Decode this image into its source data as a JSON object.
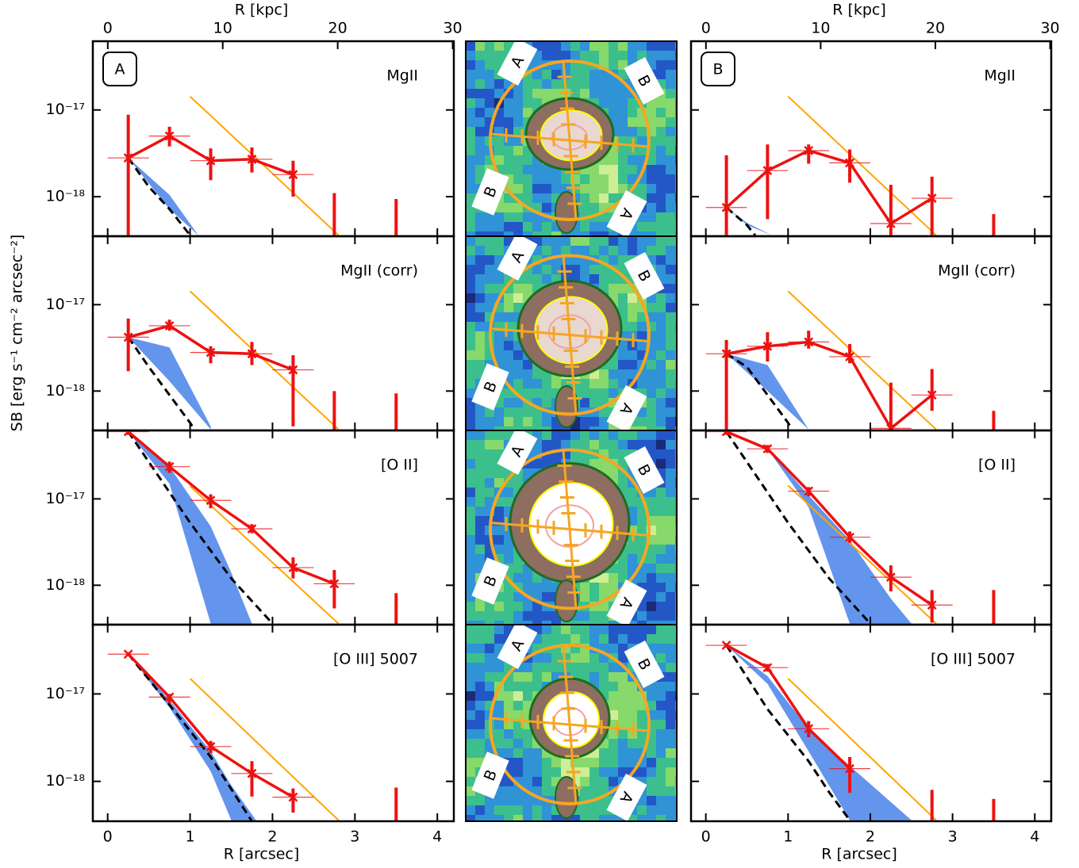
{
  "chart_data": [
    {
      "type": "line",
      "title": "MgII",
      "panel_label": "A",
      "x2label": "R [kpc]",
      "x2lim": [
        -1.3,
        30.1
      ],
      "x2ticks": [
        0,
        10,
        20,
        30
      ],
      "ylabel": "SB [erg s⁻¹ cm⁻² arcsec⁻²]",
      "xlim": [
        -0.18,
        4.2
      ],
      "xticks": [
        0,
        1,
        2,
        3,
        4
      ],
      "ylim": [
        3.5e-19,
        6.2e-17
      ],
      "log_y": true,
      "yticks": [
        {
          "value": 1e-17,
          "label": "10⁻¹⁷"
        },
        {
          "value": 1e-18,
          "label": "10⁻¹⁸"
        }
      ],
      "points": {
        "color": "#ee1111",
        "xerr": 0.25,
        "x": [
          0.25,
          0.75,
          1.25,
          1.75,
          2.25
        ],
        "values": [
          2.8e-18,
          5e-18,
          2.6e-18,
          2.7e-18,
          1.8e-18
        ],
        "ylow": [
          3.6e-19,
          3.8e-18,
          1.55e-18,
          1.9e-18,
          1e-18
        ],
        "yhigh": [
          8.8e-18,
          6.4e-18,
          3.6e-18,
          3.7e-18,
          2.6e-18
        ]
      },
      "limits": {
        "color": "#ee1111",
        "x": [
          2.75,
          3.5
        ],
        "y": [
          1.1e-18,
          9.4e-19
        ]
      },
      "model": {
        "color": "#ffa500",
        "x": [
          1.0,
          2.8
        ],
        "y": [
          1.43e-17,
          3.6e-19
        ]
      },
      "psf": {
        "color": "#000000",
        "x": [
          0.25,
          0.5,
          0.75,
          1.0
        ],
        "y": [
          2.8e-18,
          1.3e-18,
          7.2e-19,
          3.6e-19
        ]
      },
      "band": {
        "color": "#6495ed",
        "x": [
          0.25,
          0.75,
          1.1
        ],
        "high": [
          2.8e-18,
          1.05e-18,
          3.6e-19
        ],
        "low": [
          2.8e-18,
          7.2e-19,
          3.6e-19
        ]
      }
    },
    {
      "type": "line",
      "title": "MgII (corr)",
      "xlim": [
        -0.18,
        4.2
      ],
      "xticks": [
        0,
        1,
        2,
        3,
        4
      ],
      "ylim": [
        3.5e-19,
        6.2e-17
      ],
      "log_y": true,
      "yticks": [
        {
          "value": 1e-17,
          "label": "10⁻¹⁷"
        },
        {
          "value": 1e-18,
          "label": "10⁻¹⁸"
        }
      ],
      "points": {
        "color": "#ee1111",
        "xerr": 0.25,
        "x": [
          0.25,
          0.75,
          1.25,
          1.75,
          2.25
        ],
        "values": [
          4.2e-18,
          5.7e-18,
          2.8e-18,
          2.7e-18,
          1.76e-18
        ],
        "ylow": [
          1.7e-18,
          5e-18,
          2.1e-18,
          2e-18,
          3.9e-19
        ],
        "yhigh": [
          6.9e-18,
          6.7e-18,
          3.3e-18,
          3.7e-18,
          2.6e-18
        ]
      },
      "limits": {
        "color": "#ee1111",
        "x": [
          2.75,
          3.5
        ],
        "y": [
          1e-18,
          9.4e-19
        ]
      },
      "model": {
        "color": "#ffa500",
        "x": [
          1.0,
          2.8
        ],
        "y": [
          1.43e-17,
          3.6e-19
        ]
      },
      "psf": {
        "color": "#000000",
        "x": [
          0.25,
          0.5,
          0.75,
          1.0,
          1.05
        ],
        "y": [
          4.2e-18,
          1.9e-18,
          9e-19,
          4.3e-19,
          3.6e-19
        ]
      },
      "band": {
        "color": "#6495ed",
        "x": [
          0.25,
          0.75,
          1.25
        ],
        "high": [
          4.2e-18,
          3.2e-18,
          3.9e-19
        ],
        "low": [
          4.2e-18,
          1.3e-18,
          3.6e-19
        ]
      }
    },
    {
      "type": "line",
      "title": "[O II]",
      "xlim": [
        -0.18,
        4.2
      ],
      "xticks": [
        0,
        1,
        2,
        3,
        4
      ],
      "ylim": [
        3.5e-19,
        6.2e-17
      ],
      "log_y": true,
      "yticks": [
        {
          "value": 1e-17,
          "label": "10⁻¹⁷"
        },
        {
          "value": 1e-18,
          "label": "10⁻¹⁸"
        }
      ],
      "points": {
        "color": "#ee1111",
        "xerr": 0.25,
        "x": [
          0.25,
          0.75,
          1.25,
          1.75,
          2.25,
          2.75
        ],
        "values": [
          6e-17,
          2.36e-17,
          9.6e-18,
          4.5e-18,
          1.6e-18,
          1.04e-18
        ],
        "ylow": [
          5.5e-17,
          2e-17,
          7.8e-18,
          4e-18,
          1.2e-18,
          5.4e-19
        ],
        "yhigh": [
          6.5e-17,
          2.7e-17,
          1.13e-17,
          5.1e-18,
          2.1e-18,
          1.5e-18
        ]
      },
      "limits": {
        "color": "#ee1111",
        "x": [
          3.5
        ],
        "y": [
          8.1e-19
        ]
      },
      "model": {
        "color": "#ffa500",
        "x": [
          1.0,
          2.8
        ],
        "y": [
          1.4e-17,
          3.6e-19
        ]
      },
      "psf": {
        "color": "#000000",
        "x": [
          0.25,
          1.0,
          1.5,
          2.0
        ],
        "y": [
          6e-17,
          5.3e-18,
          1.2e-18,
          3.6e-19
        ]
      },
      "band": {
        "color": "#6495ed",
        "x": [
          0.25,
          0.75,
          1.25,
          1.5,
          1.75
        ],
        "high": [
          6e-17,
          2.36e-17,
          4.8e-18,
          1.4e-18,
          3.6e-19
        ],
        "low": [
          6e-17,
          1.5e-17,
          3.6e-19,
          3.6e-19,
          3.6e-19
        ]
      }
    },
    {
      "type": "line",
      "title": "[O III] 5007",
      "xlabel": "R [arcsec]",
      "xlim": [
        -0.18,
        4.2
      ],
      "xticks": [
        0,
        1,
        2,
        3,
        4
      ],
      "ylim": [
        3.5e-19,
        6.2e-17
      ],
      "log_y": true,
      "yticks": [
        {
          "value": 1e-17,
          "label": "10⁻¹⁷"
        },
        {
          "value": 1e-18,
          "label": "10⁻¹⁸"
        }
      ],
      "points": {
        "color": "#ee1111",
        "xerr": 0.25,
        "x": [
          0.25,
          0.75,
          1.25,
          1.75,
          2.25
        ],
        "values": [
          2.85e-17,
          9.2e-18,
          2.5e-18,
          1.23e-18,
          6.6e-19
        ],
        "ylow": [
          2.7e-17,
          7.9e-18,
          2.1e-18,
          6.7e-19,
          4.4e-19
        ],
        "yhigh": [
          3e-17,
          1e-17,
          2.9e-18,
          1.7e-18,
          8.3e-19
        ]
      },
      "limits": {
        "color": "#ee1111",
        "x": [
          3.5
        ],
        "y": [
          8.5e-19
        ]
      },
      "model": {
        "color": "#ffa500",
        "x": [
          1.0,
          2.8
        ],
        "y": [
          1.5e-17,
          3.6e-19
        ]
      },
      "psf": {
        "color": "#000000",
        "x": [
          0.25,
          0.75,
          1.25,
          1.75
        ],
        "y": [
          2.85e-17,
          7.5e-18,
          1.9e-18,
          3.5e-19
        ]
      },
      "band": {
        "color": "#6495ed",
        "x": [
          0.25,
          0.75,
          1.25,
          1.5,
          1.8
        ],
        "high": [
          2.85e-17,
          8.5e-18,
          2.2e-18,
          9e-19,
          3.6e-19
        ],
        "low": [
          2.85e-17,
          7e-18,
          1.3e-18,
          3.6e-19,
          3.6e-19
        ]
      }
    },
    {
      "type": "line",
      "title": "MgII",
      "panel_label": "B",
      "x2label": "R [kpc]",
      "x2lim": [
        -1.3,
        30.1
      ],
      "x2ticks": [
        0,
        10,
        20,
        30
      ],
      "xlim": [
        -0.18,
        4.2
      ],
      "xticks": [
        0,
        1,
        2,
        3,
        4
      ],
      "ylim": [
        3.5e-19,
        6.2e-17
      ],
      "log_y": true,
      "yticks": [
        {
          "value": 1e-17,
          "label": "10⁻¹⁷"
        },
        {
          "value": 1e-18,
          "label": "10⁻¹⁸"
        }
      ],
      "points": {
        "color": "#ee1111",
        "xerr": 0.25,
        "x": [
          0.25,
          0.75,
          1.25,
          1.75,
          2.25,
          2.75
        ],
        "values": [
          7.5e-19,
          2e-18,
          3.4e-18,
          2.45e-18,
          4.9e-19,
          9.6e-19
        ],
        "ylow": [
          3.6e-19,
          5.5e-19,
          2.4e-18,
          1.45e-18,
          3.6e-19,
          3.6e-19
        ],
        "yhigh": [
          3e-18,
          4e-18,
          4e-18,
          3.5e-18,
          1.37e-18,
          1.7e-18
        ]
      },
      "limits": {
        "color": "#ee1111",
        "x": [
          3.5
        ],
        "y": [
          6.3e-19
        ]
      },
      "model": {
        "color": "#ffa500",
        "x": [
          1.0,
          2.8
        ],
        "y": [
          1.43e-17,
          3.6e-19
        ]
      },
      "psf": {
        "color": "#000000",
        "x": [
          0.25,
          0.5,
          0.6
        ],
        "y": [
          7.5e-19,
          4.7e-19,
          3.6e-19
        ]
      },
      "band": {
        "color": "#6495ed",
        "x": [
          0.25,
          0.5,
          0.8
        ],
        "high": [
          7.5e-19,
          5e-19,
          3.6e-19
        ],
        "low": [
          7.5e-19,
          4.7e-19,
          3.6e-19
        ]
      }
    },
    {
      "type": "line",
      "title": "MgII (corr)",
      "xlim": [
        -0.18,
        4.2
      ],
      "xticks": [
        0,
        1,
        2,
        3,
        4
      ],
      "ylim": [
        3.5e-19,
        6.2e-17
      ],
      "log_y": true,
      "yticks": [
        {
          "value": 1e-17,
          "label": "10⁻¹⁷"
        },
        {
          "value": 1e-18,
          "label": "10⁻¹⁸"
        }
      ],
      "points": {
        "color": "#ee1111",
        "xerr": 0.25,
        "x": [
          0.25,
          0.75,
          1.25,
          1.75,
          2.25,
          2.75
        ],
        "values": [
          2.7e-18,
          3.3e-18,
          3.7e-18,
          2.5e-18,
          3.7e-19,
          9e-19
        ],
        "ylow": [
          3.6e-19,
          2.2e-18,
          3.1e-18,
          2.1e-18,
          3.6e-19,
          5.9e-19
        ],
        "yhigh": [
          3.9e-18,
          4.8e-18,
          5e-18,
          3.5e-18,
          1.25e-18,
          1.8e-18
        ]
      },
      "limits": {
        "color": "#ee1111",
        "x": [
          3.5
        ],
        "y": [
          5.9e-19
        ]
      },
      "model": {
        "color": "#ffa500",
        "x": [
          1.0,
          2.8
        ],
        "y": [
          1.43e-17,
          3.6e-19
        ]
      },
      "psf": {
        "color": "#000000",
        "x": [
          0.25,
          0.5,
          0.75,
          1.0,
          1.05
        ],
        "y": [
          2.7e-18,
          1.9e-18,
          9e-19,
          4.3e-19,
          3.6e-19
        ]
      },
      "band": {
        "color": "#6495ed",
        "x": [
          0.25,
          0.75,
          1.25
        ],
        "high": [
          2.7e-18,
          2e-18,
          3.6e-19
        ],
        "low": [
          2.7e-18,
          1e-18,
          3.6e-19
        ]
      }
    },
    {
      "type": "line",
      "title": "[O II]",
      "xlim": [
        -0.18,
        4.2
      ],
      "xticks": [
        0,
        1,
        2,
        3,
        4
      ],
      "ylim": [
        3.5e-19,
        6.2e-17
      ],
      "log_y": true,
      "yticks": [
        {
          "value": 1e-17,
          "label": "10⁻¹⁷"
        },
        {
          "value": 1e-18,
          "label": "10⁻¹⁸"
        }
      ],
      "points": {
        "color": "#ee1111",
        "xerr": 0.25,
        "x": [
          0.25,
          0.75,
          1.25,
          1.75,
          2.25,
          2.75
        ],
        "values": [
          6e-17,
          3.8e-17,
          1.23e-17,
          3.6e-18,
          1.24e-18,
          5.9e-19
        ],
        "ylow": [
          5.5e-17,
          3.4e-17,
          1.07e-17,
          3.1e-18,
          8.5e-19,
          3.7e-19
        ],
        "yhigh": [
          6.5e-17,
          4.2e-17,
          1.37e-17,
          4.2e-18,
          1.7e-18,
          8.8e-19
        ]
      },
      "limits": {
        "color": "#ee1111",
        "x": [
          3.5
        ],
        "y": [
          8.8e-19
        ]
      },
      "model": {
        "color": "#ffa500",
        "x": [
          1.0,
          2.8
        ],
        "y": [
          1.43e-17,
          3.6e-19
        ]
      },
      "psf": {
        "color": "#000000",
        "x": [
          0.25,
          1.0,
          1.5,
          2.0
        ],
        "y": [
          6e-17,
          5.3e-18,
          1.2e-18,
          3.6e-19
        ]
      },
      "band": {
        "color": "#6495ed",
        "x": [
          0.75,
          1.25,
          1.75,
          2.25,
          2.5
        ],
        "high": [
          3.8e-17,
          1.1e-17,
          3.3e-18,
          7e-19,
          3.6e-19
        ],
        "low": [
          3.8e-17,
          8e-18,
          3.6e-19,
          3.6e-19,
          3.6e-19
        ]
      }
    },
    {
      "type": "line",
      "title": "[O III] 5007",
      "xlabel": "R [arcsec]",
      "xlim": [
        -0.18,
        4.2
      ],
      "xticks": [
        0,
        1,
        2,
        3,
        4
      ],
      "ylim": [
        3.5e-19,
        6.2e-17
      ],
      "log_y": true,
      "yticks": [
        {
          "value": 1e-17,
          "label": "10⁻¹⁷"
        },
        {
          "value": 1e-18,
          "label": "10⁻¹⁸"
        }
      ],
      "points": {
        "color": "#ee1111",
        "xerr": 0.25,
        "x": [
          0.25,
          0.75,
          1.25,
          1.75
        ],
        "values": [
          3.6e-17,
          2e-17,
          4e-18,
          1.4e-18
        ],
        "ylow": [
          3.4e-17,
          1.8e-17,
          3.2e-18,
          7.4e-19
        ],
        "yhigh": [
          3.8e-17,
          2.2e-17,
          4.9e-18,
          1.9e-18
        ]
      },
      "limits": {
        "color": "#ee1111",
        "x": [
          2.75,
          3.5
        ],
        "y": [
          8e-19,
          6.3e-19
        ]
      },
      "model": {
        "color": "#ffa500",
        "x": [
          1.0,
          2.8
        ],
        "y": [
          1.5e-17,
          3.6e-19
        ]
      },
      "psf": {
        "color": "#000000",
        "x": [
          0.25,
          0.75,
          1.25,
          1.5,
          1.75
        ],
        "y": [
          3.6e-17,
          6.7e-18,
          1.7e-18,
          7.5e-19,
          3.6e-19
        ]
      },
      "band": {
        "color": "#6495ed",
        "x": [
          0.25,
          0.75,
          1.25,
          1.75,
          2.5
        ],
        "high": [
          3.6e-17,
          1.6e-17,
          4e-18,
          1.5e-18,
          3.6e-19
        ],
        "low": [
          3.6e-17,
          1.3e-17,
          2.2e-18,
          3.6e-19,
          3.6e-19
        ]
      }
    }
  ],
  "images": {
    "markers": [
      "A",
      "B",
      "B",
      "A"
    ]
  }
}
